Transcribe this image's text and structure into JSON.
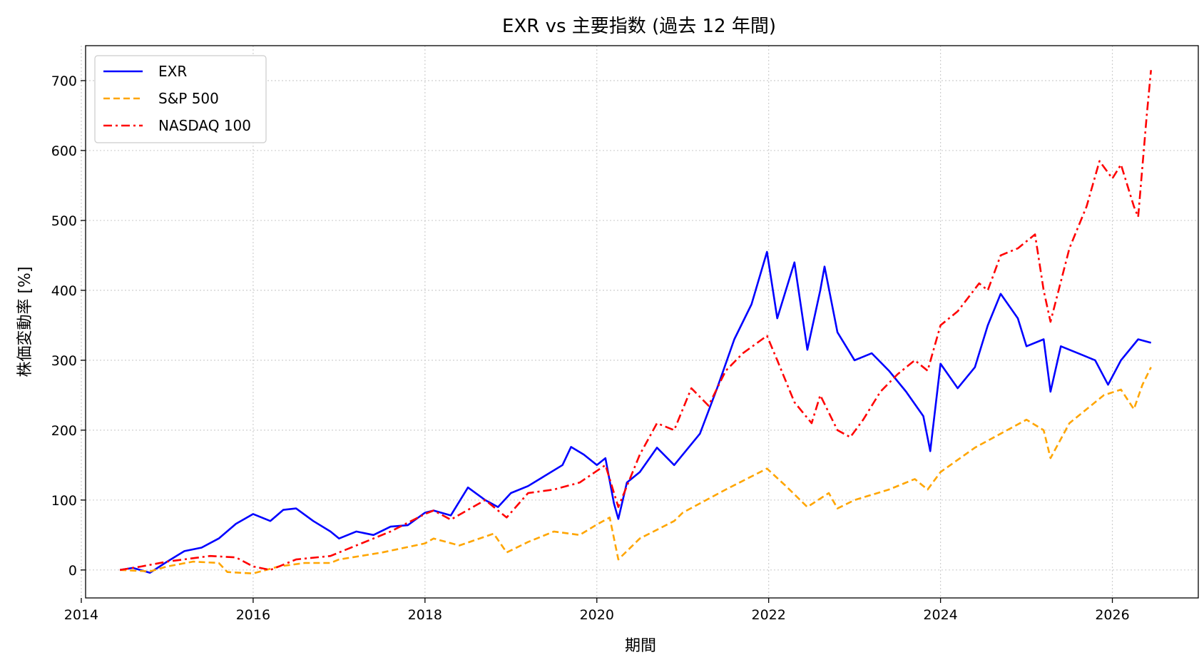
{
  "chart_data": {
    "type": "line",
    "title": "EXR vs 主要指数 (過去 12 年間)",
    "xlabel": "期間",
    "ylabel": "株価変動率 [%]",
    "xlim": [
      2014.05,
      2027.0
    ],
    "ylim": [
      -40,
      750
    ],
    "x_ticks": [
      2014,
      2016,
      2018,
      2020,
      2022,
      2024,
      2026
    ],
    "y_ticks": [
      0,
      100,
      200,
      300,
      400,
      500,
      600,
      700
    ],
    "grid": true,
    "legend_position": "top-left",
    "series": [
      {
        "name": "EXR",
        "color": "#0000ff",
        "dash": "solid",
        "points": [
          [
            2014.45,
            0
          ],
          [
            2014.6,
            3
          ],
          [
            2014.8,
            -4
          ],
          [
            2015.0,
            12
          ],
          [
            2015.2,
            27
          ],
          [
            2015.4,
            32
          ],
          [
            2015.6,
            45
          ],
          [
            2015.8,
            66
          ],
          [
            2016.0,
            80
          ],
          [
            2016.2,
            70
          ],
          [
            2016.35,
            86
          ],
          [
            2016.5,
            88
          ],
          [
            2016.7,
            70
          ],
          [
            2016.9,
            55
          ],
          [
            2017.0,
            45
          ],
          [
            2017.2,
            55
          ],
          [
            2017.4,
            50
          ],
          [
            2017.6,
            62
          ],
          [
            2017.8,
            64
          ],
          [
            2018.0,
            82
          ],
          [
            2018.1,
            85
          ],
          [
            2018.3,
            78
          ],
          [
            2018.5,
            118
          ],
          [
            2018.7,
            100
          ],
          [
            2018.85,
            90
          ],
          [
            2019.0,
            110
          ],
          [
            2019.2,
            120
          ],
          [
            2019.4,
            135
          ],
          [
            2019.6,
            150
          ],
          [
            2019.7,
            176
          ],
          [
            2019.85,
            165
          ],
          [
            2020.0,
            150
          ],
          [
            2020.1,
            160
          ],
          [
            2020.2,
            95
          ],
          [
            2020.25,
            73
          ],
          [
            2020.35,
            125
          ],
          [
            2020.5,
            140
          ],
          [
            2020.7,
            175
          ],
          [
            2020.9,
            150
          ],
          [
            2021.0,
            165
          ],
          [
            2021.2,
            195
          ],
          [
            2021.4,
            260
          ],
          [
            2021.6,
            330
          ],
          [
            2021.8,
            380
          ],
          [
            2021.98,
            455
          ],
          [
            2022.1,
            360
          ],
          [
            2022.3,
            440
          ],
          [
            2022.45,
            315
          ],
          [
            2022.6,
            400
          ],
          [
            2022.65,
            434
          ],
          [
            2022.8,
            340
          ],
          [
            2023.0,
            300
          ],
          [
            2023.2,
            310
          ],
          [
            2023.4,
            285
          ],
          [
            2023.6,
            255
          ],
          [
            2023.8,
            220
          ],
          [
            2023.88,
            170
          ],
          [
            2024.0,
            295
          ],
          [
            2024.2,
            260
          ],
          [
            2024.4,
            290
          ],
          [
            2024.55,
            350
          ],
          [
            2024.7,
            395
          ],
          [
            2024.9,
            360
          ],
          [
            2025.0,
            320
          ],
          [
            2025.2,
            330
          ],
          [
            2025.28,
            255
          ],
          [
            2025.4,
            320
          ],
          [
            2025.6,
            310
          ],
          [
            2025.8,
            300
          ],
          [
            2025.95,
            265
          ],
          [
            2026.1,
            300
          ],
          [
            2026.3,
            330
          ],
          [
            2026.45,
            325
          ]
        ]
      },
      {
        "name": "S&P 500",
        "color": "#ffa500",
        "dash": "dashed",
        "points": [
          [
            2014.45,
            0
          ],
          [
            2014.8,
            -2
          ],
          [
            2015.0,
            5
          ],
          [
            2015.3,
            12
          ],
          [
            2015.6,
            10
          ],
          [
            2015.7,
            -3
          ],
          [
            2016.0,
            -5
          ],
          [
            2016.3,
            5
          ],
          [
            2016.6,
            10
          ],
          [
            2016.9,
            10
          ],
          [
            2017.0,
            15
          ],
          [
            2017.5,
            25
          ],
          [
            2018.0,
            38
          ],
          [
            2018.1,
            45
          ],
          [
            2018.4,
            35
          ],
          [
            2018.8,
            52
          ],
          [
            2018.95,
            25
          ],
          [
            2019.2,
            40
          ],
          [
            2019.5,
            55
          ],
          [
            2019.8,
            50
          ],
          [
            2020.0,
            65
          ],
          [
            2020.15,
            75
          ],
          [
            2020.25,
            15
          ],
          [
            2020.5,
            45
          ],
          [
            2020.9,
            70
          ],
          [
            2021.0,
            82
          ],
          [
            2021.5,
            115
          ],
          [
            2021.98,
            145
          ],
          [
            2022.2,
            120
          ],
          [
            2022.45,
            90
          ],
          [
            2022.7,
            110
          ],
          [
            2022.8,
            88
          ],
          [
            2023.0,
            100
          ],
          [
            2023.4,
            115
          ],
          [
            2023.7,
            130
          ],
          [
            2023.85,
            115
          ],
          [
            2024.0,
            140
          ],
          [
            2024.4,
            175
          ],
          [
            2024.7,
            195
          ],
          [
            2025.0,
            215
          ],
          [
            2025.2,
            200
          ],
          [
            2025.28,
            160
          ],
          [
            2025.5,
            210
          ],
          [
            2025.9,
            250
          ],
          [
            2026.1,
            258
          ],
          [
            2026.25,
            230
          ],
          [
            2026.35,
            265
          ],
          [
            2026.45,
            290
          ]
        ]
      },
      {
        "name": "NASDAQ 100",
        "color": "#ff0000",
        "dash": "dashdot",
        "points": [
          [
            2014.45,
            0
          ],
          [
            2014.7,
            5
          ],
          [
            2015.0,
            12
          ],
          [
            2015.5,
            20
          ],
          [
            2015.8,
            18
          ],
          [
            2016.0,
            5
          ],
          [
            2016.2,
            0
          ],
          [
            2016.5,
            15
          ],
          [
            2016.9,
            20
          ],
          [
            2017.2,
            35
          ],
          [
            2017.6,
            55
          ],
          [
            2018.0,
            80
          ],
          [
            2018.1,
            85
          ],
          [
            2018.3,
            72
          ],
          [
            2018.7,
            100
          ],
          [
            2018.95,
            75
          ],
          [
            2019.2,
            110
          ],
          [
            2019.5,
            115
          ],
          [
            2019.8,
            125
          ],
          [
            2020.1,
            150
          ],
          [
            2020.25,
            90
          ],
          [
            2020.5,
            165
          ],
          [
            2020.7,
            210
          ],
          [
            2020.9,
            200
          ],
          [
            2021.1,
            260
          ],
          [
            2021.3,
            235
          ],
          [
            2021.5,
            285
          ],
          [
            2021.7,
            310
          ],
          [
            2021.98,
            335
          ],
          [
            2022.1,
            300
          ],
          [
            2022.3,
            240
          ],
          [
            2022.5,
            210
          ],
          [
            2022.6,
            250
          ],
          [
            2022.8,
            200
          ],
          [
            2022.95,
            190
          ],
          [
            2023.1,
            215
          ],
          [
            2023.3,
            255
          ],
          [
            2023.5,
            280
          ],
          [
            2023.7,
            300
          ],
          [
            2023.85,
            285
          ],
          [
            2024.0,
            350
          ],
          [
            2024.2,
            370
          ],
          [
            2024.45,
            410
          ],
          [
            2024.55,
            400
          ],
          [
            2024.7,
            450
          ],
          [
            2024.9,
            460
          ],
          [
            2025.1,
            480
          ],
          [
            2025.2,
            400
          ],
          [
            2025.28,
            355
          ],
          [
            2025.5,
            460
          ],
          [
            2025.7,
            520
          ],
          [
            2025.85,
            585
          ],
          [
            2026.0,
            560
          ],
          [
            2026.1,
            580
          ],
          [
            2026.25,
            520
          ],
          [
            2026.3,
            505
          ],
          [
            2026.4,
            650
          ],
          [
            2026.45,
            715
          ]
        ]
      }
    ]
  }
}
